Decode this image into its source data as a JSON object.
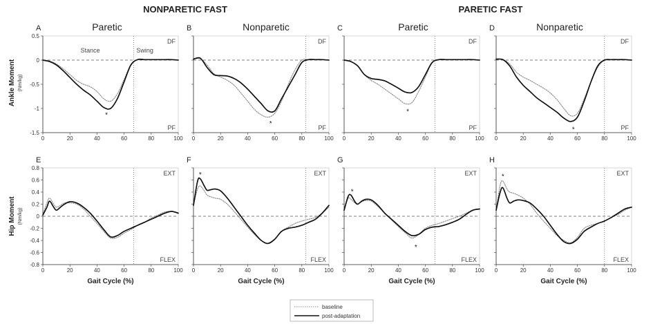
{
  "figure": {
    "group_titles": [
      "NONPARETIC FAST",
      "PARETIC FAST"
    ],
    "column_titles": [
      "Paretic",
      "Nonparetic",
      "Paretic",
      "Nonparetic"
    ],
    "row_labels": [
      {
        "label": "Ankle Moment",
        "unit": "(Nm/kg)"
      },
      {
        "label": "Hip Moment",
        "unit": "(Nm/kg)"
      }
    ],
    "legend": [
      {
        "label": "baseline",
        "style": "dotted"
      },
      {
        "label": "post-adaptation",
        "style": "solid"
      }
    ],
    "colors": {
      "baseline": "#888888",
      "post_adaptation": "#111111",
      "reference": "#555555"
    }
  },
  "chart_data": [
    {
      "panel": "A",
      "type": "line",
      "title": "Paretic",
      "group": "NONPARETIC FAST",
      "xlabel": "",
      "ylabel": "Ankle Moment",
      "yunit": "(Nm/kg)",
      "xlim": [
        0,
        100
      ],
      "ylim": [
        -1.5,
        0.5
      ],
      "yticks": [
        "0.5",
        "0",
        "-0.5",
        "-1",
        "-1.5"
      ],
      "corner_top": "DF",
      "corner_bottom": "PF",
      "phase_labels": [
        "Stance",
        "Swing"
      ],
      "toe_off": 67,
      "significance": [
        {
          "x": 47,
          "y": -1.12
        }
      ],
      "series": [
        {
          "name": "baseline",
          "x": [
            0,
            5,
            10,
            15,
            20,
            25,
            30,
            35,
            40,
            45,
            50,
            55,
            60,
            65,
            70,
            75,
            80,
            85,
            90,
            95,
            100
          ],
          "y": [
            0,
            -0.02,
            -0.08,
            -0.18,
            -0.3,
            -0.42,
            -0.5,
            -0.55,
            -0.65,
            -0.8,
            -0.85,
            -0.7,
            -0.4,
            -0.1,
            0.01,
            0.01,
            0.01,
            0.01,
            0.01,
            0.01,
            0
          ]
        },
        {
          "name": "post-adaptation",
          "x": [
            0,
            5,
            10,
            15,
            20,
            25,
            30,
            35,
            40,
            45,
            50,
            55,
            60,
            65,
            70,
            75,
            80,
            85,
            90,
            95,
            100
          ],
          "y": [
            0,
            -0.03,
            -0.1,
            -0.22,
            -0.36,
            -0.5,
            -0.62,
            -0.72,
            -0.85,
            -0.98,
            -1.0,
            -0.8,
            -0.45,
            -0.1,
            0.01,
            0.01,
            0.01,
            0.01,
            0.01,
            0.01,
            0
          ]
        }
      ]
    },
    {
      "panel": "B",
      "type": "line",
      "title": "Nonparetic",
      "group": "NONPARETIC FAST",
      "xlabel": "",
      "ylabel": "",
      "xlim": [
        0,
        100
      ],
      "ylim": [
        -1.5,
        0.5
      ],
      "corner_top": "DF",
      "corner_bottom": "PF",
      "toe_off": 83,
      "significance": [
        {
          "x": 57,
          "y": -1.3
        }
      ],
      "series": [
        {
          "name": "baseline",
          "x": [
            0,
            5,
            10,
            15,
            20,
            25,
            30,
            35,
            40,
            45,
            50,
            55,
            60,
            65,
            70,
            75,
            80,
            85,
            90,
            95,
            100
          ],
          "y": [
            0.02,
            0.03,
            -0.1,
            -0.28,
            -0.35,
            -0.42,
            -0.52,
            -0.68,
            -0.85,
            -1.02,
            -1.13,
            -1.18,
            -1.1,
            -0.85,
            -0.5,
            -0.2,
            0.0,
            0.01,
            0.01,
            0.01,
            0
          ]
        },
        {
          "name": "post-adaptation",
          "x": [
            0,
            5,
            10,
            15,
            20,
            25,
            30,
            35,
            40,
            45,
            50,
            55,
            60,
            65,
            70,
            75,
            80,
            85,
            90,
            95,
            100
          ],
          "y": [
            0.02,
            0.04,
            -0.15,
            -0.3,
            -0.32,
            -0.33,
            -0.38,
            -0.47,
            -0.6,
            -0.75,
            -0.9,
            -1.05,
            -1.05,
            -0.8,
            -0.55,
            -0.3,
            -0.05,
            0.01,
            0.01,
            0.01,
            0
          ]
        }
      ]
    },
    {
      "panel": "C",
      "type": "line",
      "title": "Paretic",
      "group": "PARETIC FAST",
      "xlabel": "",
      "ylabel": "",
      "xlim": [
        0,
        100
      ],
      "ylim": [
        -1.5,
        0.5
      ],
      "corner_top": "DF",
      "corner_bottom": "PF",
      "toe_off": 67,
      "significance": [
        {
          "x": 47,
          "y": -1.05
        }
      ],
      "series": [
        {
          "name": "baseline",
          "x": [
            0,
            5,
            10,
            15,
            20,
            25,
            30,
            35,
            40,
            45,
            50,
            55,
            60,
            65,
            70,
            75,
            80,
            85,
            90,
            95,
            100
          ],
          "y": [
            0,
            -0.03,
            -0.12,
            -0.3,
            -0.42,
            -0.5,
            -0.6,
            -0.7,
            -0.8,
            -0.9,
            -0.88,
            -0.65,
            -0.35,
            -0.05,
            0.01,
            0.01,
            0.01,
            0.01,
            0.01,
            0.01,
            0
          ]
        },
        {
          "name": "post-adaptation",
          "x": [
            0,
            5,
            10,
            15,
            20,
            25,
            30,
            35,
            40,
            45,
            50,
            55,
            60,
            65,
            70,
            75,
            80,
            85,
            90,
            95,
            100
          ],
          "y": [
            0,
            -0.03,
            -0.12,
            -0.3,
            -0.38,
            -0.4,
            -0.43,
            -0.5,
            -0.58,
            -0.66,
            -0.67,
            -0.55,
            -0.3,
            -0.05,
            0.01,
            0.01,
            0.01,
            0.01,
            0.01,
            0.01,
            0
          ]
        }
      ]
    },
    {
      "panel": "D",
      "type": "line",
      "title": "Nonparetic",
      "group": "PARETIC FAST",
      "xlabel": "",
      "ylabel": "",
      "xlim": [
        0,
        100
      ],
      "ylim": [
        -1.5,
        0.5
      ],
      "corner_top": "DF",
      "corner_bottom": "PF",
      "toe_off": 80,
      "significance": [
        {
          "x": 57,
          "y": -1.42
        }
      ],
      "series": [
        {
          "name": "baseline",
          "x": [
            0,
            5,
            10,
            15,
            20,
            25,
            30,
            35,
            40,
            45,
            50,
            55,
            60,
            65,
            70,
            75,
            80,
            85,
            90,
            95,
            100
          ],
          "y": [
            0.02,
            0.01,
            -0.08,
            -0.25,
            -0.35,
            -0.42,
            -0.5,
            -0.58,
            -0.68,
            -0.82,
            -1.0,
            -1.15,
            -1.1,
            -0.8,
            -0.45,
            -0.15,
            0.0,
            0.01,
            0.01,
            0.01,
            0
          ]
        },
        {
          "name": "post-adaptation",
          "x": [
            0,
            5,
            10,
            15,
            20,
            25,
            30,
            35,
            40,
            45,
            50,
            55,
            60,
            65,
            70,
            75,
            80,
            85,
            90,
            95,
            100
          ],
          "y": [
            0.02,
            0.01,
            -0.12,
            -0.35,
            -0.52,
            -0.65,
            -0.78,
            -0.88,
            -0.98,
            -1.08,
            -1.2,
            -1.27,
            -1.18,
            -0.85,
            -0.45,
            -0.12,
            0.0,
            0.01,
            0.01,
            0.01,
            0
          ]
        }
      ]
    },
    {
      "panel": "E",
      "type": "line",
      "title": "",
      "group": "NONPARETIC FAST",
      "xlabel": "Gait Cycle (%)",
      "ylabel": "Hip Moment",
      "yunit": "(Nm/kg)",
      "xlim": [
        0,
        100
      ],
      "ylim": [
        -0.8,
        0.8
      ],
      "xticks": [
        "0",
        "20",
        "40",
        "60",
        "80",
        "100"
      ],
      "yticks": [
        "0.8",
        "0.6",
        "0.4",
        "0.2",
        "0",
        "-0.2",
        "-0.4",
        "-0.6",
        "-0.8"
      ],
      "corner_top": "EXT",
      "corner_bottom": "FLEX",
      "toe_off": 67,
      "significance": [],
      "series": [
        {
          "name": "baseline",
          "x": [
            0,
            3,
            5,
            8,
            10,
            13,
            16,
            20,
            25,
            30,
            35,
            40,
            45,
            50,
            55,
            60,
            65,
            70,
            75,
            80,
            85,
            90,
            95,
            100
          ],
          "y": [
            0.02,
            0.22,
            0.3,
            0.2,
            0.15,
            0.18,
            0.22,
            0.22,
            0.2,
            0.12,
            0.0,
            -0.12,
            -0.25,
            -0.36,
            -0.35,
            -0.28,
            -0.22,
            -0.15,
            -0.1,
            -0.03,
            0.02,
            0.07,
            0.08,
            0.06
          ]
        },
        {
          "name": "post-adaptation",
          "x": [
            0,
            3,
            5,
            8,
            10,
            13,
            16,
            20,
            25,
            30,
            35,
            40,
            45,
            50,
            55,
            60,
            65,
            70,
            75,
            80,
            85,
            90,
            95,
            100
          ],
          "y": [
            0.02,
            0.15,
            0.25,
            0.15,
            0.1,
            0.15,
            0.2,
            0.24,
            0.22,
            0.15,
            0.05,
            -0.08,
            -0.22,
            -0.34,
            -0.32,
            -0.25,
            -0.2,
            -0.15,
            -0.1,
            -0.05,
            0.0,
            0.05,
            0.08,
            0.05
          ]
        }
      ]
    },
    {
      "panel": "F",
      "type": "line",
      "title": "",
      "group": "NONPARETIC FAST",
      "xlabel": "Gait Cycle (%)",
      "ylabel": "",
      "xlim": [
        0,
        100
      ],
      "ylim": [
        -0.8,
        0.8
      ],
      "corner_top": "EXT",
      "corner_bottom": "FLEX",
      "toe_off": 83,
      "significance": [
        {
          "x": 5,
          "y": 0.7
        }
      ],
      "series": [
        {
          "name": "baseline",
          "x": [
            0,
            3,
            5,
            8,
            10,
            13,
            16,
            20,
            25,
            30,
            35,
            40,
            45,
            50,
            55,
            60,
            65,
            70,
            75,
            80,
            85,
            90,
            95,
            100
          ],
          "y": [
            0.18,
            0.45,
            0.5,
            0.42,
            0.35,
            0.32,
            0.3,
            0.28,
            0.2,
            0.08,
            -0.05,
            -0.18,
            -0.3,
            -0.4,
            -0.45,
            -0.38,
            -0.25,
            -0.18,
            -0.12,
            -0.08,
            -0.05,
            -0.02,
            0.05,
            0.15
          ]
        },
        {
          "name": "post-adaptation",
          "x": [
            0,
            3,
            5,
            8,
            10,
            13,
            16,
            20,
            25,
            30,
            35,
            40,
            45,
            50,
            55,
            60,
            65,
            70,
            75,
            80,
            85,
            90,
            95,
            100
          ],
          "y": [
            0.18,
            0.58,
            0.62,
            0.5,
            0.43,
            0.44,
            0.45,
            0.42,
            0.3,
            0.15,
            0.0,
            -0.15,
            -0.28,
            -0.4,
            -0.45,
            -0.38,
            -0.25,
            -0.2,
            -0.18,
            -0.15,
            -0.1,
            -0.05,
            0.05,
            0.18
          ]
        }
      ]
    },
    {
      "panel": "G",
      "type": "line",
      "title": "",
      "group": "PARETIC FAST",
      "xlabel": "Gait Cycle (%)",
      "ylabel": "",
      "xlim": [
        0,
        100
      ],
      "ylim": [
        -0.8,
        0.8
      ],
      "corner_top": "EXT",
      "corner_bottom": "FLEX",
      "toe_off": 67,
      "significance": [
        {
          "x": 6,
          "y": 0.42
        },
        {
          "x": 53,
          "y": -0.5
        }
      ],
      "series": [
        {
          "name": "baseline",
          "x": [
            0,
            3,
            5,
            8,
            10,
            13,
            16,
            20,
            25,
            30,
            35,
            40,
            45,
            50,
            55,
            60,
            65,
            70,
            75,
            80,
            85,
            90,
            95,
            100
          ],
          "y": [
            0.1,
            0.3,
            0.28,
            0.22,
            0.2,
            0.24,
            0.26,
            0.25,
            0.16,
            0.05,
            -0.06,
            -0.17,
            -0.27,
            -0.36,
            -0.3,
            -0.2,
            -0.15,
            -0.12,
            -0.08,
            -0.04,
            0.0,
            0.05,
            0.1,
            0.12
          ]
        },
        {
          "name": "post-adaptation",
          "x": [
            0,
            3,
            5,
            8,
            10,
            13,
            16,
            20,
            25,
            30,
            35,
            40,
            45,
            50,
            55,
            60,
            65,
            70,
            75,
            80,
            85,
            90,
            95,
            100
          ],
          "y": [
            0.1,
            0.33,
            0.35,
            0.24,
            0.2,
            0.25,
            0.28,
            0.27,
            0.18,
            0.05,
            -0.05,
            -0.15,
            -0.25,
            -0.32,
            -0.3,
            -0.22,
            -0.18,
            -0.17,
            -0.14,
            -0.1,
            -0.05,
            0.03,
            0.1,
            0.12
          ]
        }
      ]
    },
    {
      "panel": "H",
      "type": "line",
      "title": "",
      "group": "PARETIC FAST",
      "xlabel": "Gait Cycle (%)",
      "ylabel": "",
      "xlim": [
        0,
        100
      ],
      "ylim": [
        -0.8,
        0.8
      ],
      "corner_top": "EXT",
      "corner_bottom": "FLEX",
      "toe_off": 80,
      "significance": [
        {
          "x": 5,
          "y": 0.67
        }
      ],
      "series": [
        {
          "name": "baseline",
          "x": [
            0,
            3,
            5,
            8,
            10,
            13,
            16,
            20,
            25,
            30,
            35,
            40,
            45,
            50,
            55,
            60,
            65,
            70,
            75,
            80,
            85,
            90,
            95,
            100
          ],
          "y": [
            0.1,
            0.52,
            0.58,
            0.45,
            0.4,
            0.38,
            0.35,
            0.3,
            0.2,
            0.05,
            -0.08,
            -0.2,
            -0.32,
            -0.4,
            -0.44,
            -0.35,
            -0.2,
            -0.15,
            -0.12,
            -0.08,
            -0.02,
            0.03,
            0.1,
            0.15
          ]
        },
        {
          "name": "post-adaptation",
          "x": [
            0,
            3,
            5,
            8,
            10,
            13,
            16,
            20,
            25,
            30,
            35,
            40,
            45,
            50,
            55,
            60,
            65,
            70,
            75,
            80,
            85,
            90,
            95,
            100
          ],
          "y": [
            0.1,
            0.4,
            0.47,
            0.3,
            0.22,
            0.25,
            0.27,
            0.26,
            0.22,
            0.12,
            0.0,
            -0.15,
            -0.3,
            -0.42,
            -0.45,
            -0.38,
            -0.25,
            -0.18,
            -0.12,
            -0.08,
            -0.02,
            0.05,
            0.12,
            0.15
          ]
        }
      ]
    }
  ]
}
